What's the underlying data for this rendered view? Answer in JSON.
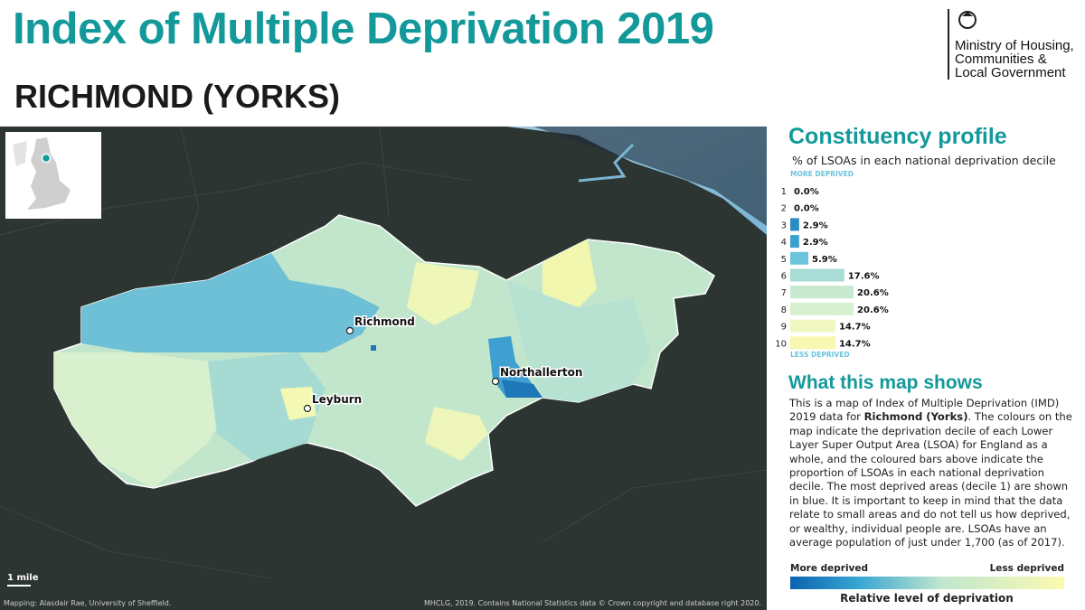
{
  "header": {
    "title": "Index of Multiple Deprivation 2019",
    "subtitle": "RICHMOND (YORKS)"
  },
  "logo": {
    "lines": [
      "Ministry of Housing,",
      "Communities &",
      "Local Government"
    ]
  },
  "map": {
    "places": [
      {
        "label": "Richmond"
      },
      {
        "label": "Leyburn"
      },
      {
        "label": "Northallerton"
      }
    ],
    "scale": "1 mile",
    "credit_left": "Mapping: Alasdair Rae, University of Sheffield.",
    "credit_right": "MHCLG, 2019. Contains National Statistics data © Crown copyright and database right 2020."
  },
  "profile": {
    "title": "Constituency profile",
    "subtitle": "% of LSOAs in each national deprivation decile",
    "top_label": "MORE DEPRIVED",
    "bottom_label": "LESS DEPRIVED"
  },
  "chart_data": {
    "type": "bar",
    "orientation": "horizontal",
    "categories": [
      "1",
      "2",
      "3",
      "4",
      "5",
      "6",
      "7",
      "8",
      "9",
      "10"
    ],
    "values": [
      0.0,
      0.0,
      2.9,
      2.9,
      5.9,
      17.6,
      20.6,
      20.6,
      14.7,
      14.7
    ],
    "value_labels": [
      "0.0%",
      "0.0%",
      "2.9%",
      "2.9%",
      "5.9%",
      "17.6%",
      "20.6%",
      "20.6%",
      "14.7%",
      "14.7%"
    ],
    "colors": [
      "#08519c",
      "#1a6fb5",
      "#2b8cc4",
      "#3aa0cc",
      "#6cc4dc",
      "#a9dcd4",
      "#c8e8d0",
      "#d8f0cf",
      "#f0f7c0",
      "#f8f8b0"
    ]
  },
  "explanation": {
    "title": "What this map shows",
    "text_before": "This is a map of Index of Multiple Deprivation (IMD) 2019 data for ",
    "text_bold": "Richmond (Yorks)",
    "text_after": ". The colours on the map indicate the deprivation decile of each Lower Layer Super Output Area (LSOA) for England as a whole, and the coloured bars above indicate the proportion of LSOAs in each national deprivation decile. The most deprived areas (decile 1) are shown in blue. It is important to keep in mind that the data relate to small areas and do not tell us how deprived, or wealthy, individual people are. LSOAs have an average population of just under 1,700 (as of 2017)."
  },
  "legend": {
    "left": "More deprived",
    "right": "Less deprived",
    "caption": "Relative level of deprivation"
  }
}
